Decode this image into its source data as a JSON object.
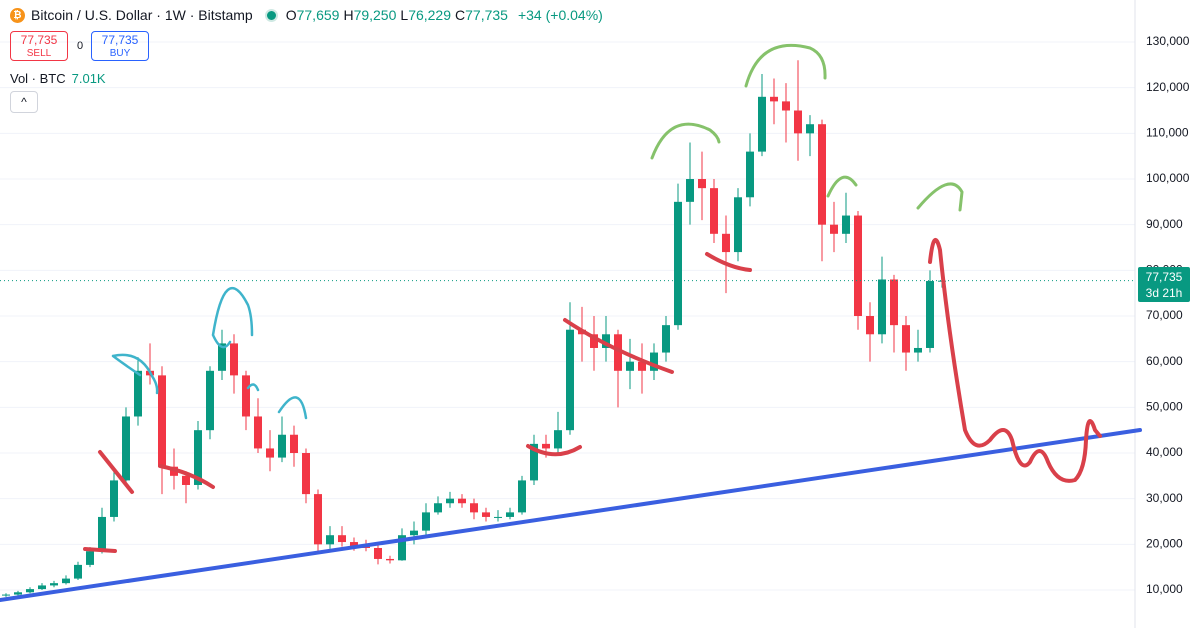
{
  "chart_data": {
    "type": "candlestick",
    "title": "Bitcoin / U.S. Dollar · 1W · Bitstamp",
    "ohlc": [
      {
        "label": "O",
        "value": "77,659"
      },
      {
        "label": "H",
        "value": "79,250"
      },
      {
        "label": "L",
        "value": "76,229"
      },
      {
        "label": "C",
        "value": "77,735"
      }
    ],
    "change": "+34 (+0.04%)",
    "sell": {
      "price": "77,735",
      "label": "SELL"
    },
    "spread": "0",
    "buy": {
      "price": "77,735",
      "label": "BUY"
    },
    "volume": {
      "label": "Vol · BTC",
      "value": "7.01K"
    },
    "last_price": {
      "label": "77,735",
      "countdown": "3d 21h"
    },
    "up_color": "#089981",
    "down_color": "#f23645",
    "ylim": [
      1680,
      139200
    ],
    "yticks": [
      {
        "value": 10000,
        "label": "10,000"
      },
      {
        "value": 20000,
        "label": "20,000"
      },
      {
        "value": 30000,
        "label": "30,000"
      },
      {
        "value": 40000,
        "label": "40,000"
      },
      {
        "value": 50000,
        "label": "50,000"
      },
      {
        "value": 60000,
        "label": "60,000"
      },
      {
        "value": 70000,
        "label": "70,000"
      },
      {
        "value": 80000,
        "label": "80,000"
      },
      {
        "value": 90000,
        "label": "90,000"
      },
      {
        "value": 100000,
        "label": "100,000"
      },
      {
        "value": 110000,
        "label": "110,000"
      },
      {
        "value": 120000,
        "label": "120,000"
      },
      {
        "value": 130000,
        "label": "130,000"
      }
    ],
    "candles": [
      [
        8800,
        9300,
        8500,
        9000
      ],
      [
        9000,
        9800,
        8800,
        9500
      ],
      [
        9500,
        10600,
        9300,
        10200
      ],
      [
        10200,
        11500,
        10000,
        11000
      ],
      [
        11000,
        12000,
        10600,
        11500
      ],
      [
        11500,
        13200,
        11200,
        12500
      ],
      [
        12500,
        16200,
        12200,
        15500
      ],
      [
        15500,
        19400,
        15000,
        18500
      ],
      [
        18500,
        28000,
        18000,
        26000
      ],
      [
        26000,
        36000,
        25000,
        34000
      ],
      [
        34000,
        50000,
        33000,
        48000
      ],
      [
        48000,
        61000,
        46000,
        58000
      ],
      [
        58000,
        64000,
        55000,
        57000
      ],
      [
        57000,
        59000,
        31000,
        37000
      ],
      [
        37000,
        41000,
        32000,
        35000
      ],
      [
        35000,
        36000,
        29000,
        33000
      ],
      [
        33000,
        47000,
        32000,
        45000
      ],
      [
        45000,
        59000,
        43000,
        58000
      ],
      [
        58000,
        67000,
        56000,
        64000
      ],
      [
        64000,
        66000,
        53000,
        57000
      ],
      [
        57000,
        58000,
        45000,
        48000
      ],
      [
        48000,
        52000,
        40000,
        41000
      ],
      [
        41000,
        45000,
        36000,
        39000
      ],
      [
        39000,
        48000,
        38000,
        44000
      ],
      [
        44000,
        46000,
        37000,
        40000
      ],
      [
        40000,
        41000,
        29000,
        31000
      ],
      [
        31000,
        32000,
        17800,
        20000
      ],
      [
        20000,
        24000,
        19000,
        22000
      ],
      [
        22000,
        24000,
        19500,
        20500
      ],
      [
        20500,
        21500,
        18600,
        19500
      ],
      [
        19500,
        21000,
        18500,
        19200
      ],
      [
        19200,
        19800,
        15600,
        16800
      ],
      [
        16800,
        17500,
        15800,
        16500
      ],
      [
        16500,
        23500,
        16400,
        22000
      ],
      [
        22000,
        25000,
        20000,
        23000
      ],
      [
        23000,
        29000,
        22000,
        27000
      ],
      [
        27000,
        30500,
        26500,
        29000
      ],
      [
        29000,
        31500,
        28000,
        30000
      ],
      [
        30000,
        31000,
        28000,
        29000
      ],
      [
        29000,
        30000,
        25500,
        27000
      ],
      [
        27000,
        28000,
        25000,
        26000
      ],
      [
        26000,
        27500,
        25000,
        26000
      ],
      [
        26000,
        28000,
        25500,
        27000
      ],
      [
        27000,
        35000,
        26500,
        34000
      ],
      [
        34000,
        44000,
        33000,
        42000
      ],
      [
        42000,
        44000,
        39000,
        41000
      ],
      [
        41000,
        49000,
        40000,
        45000
      ],
      [
        45000,
        73000,
        44000,
        67000
      ],
      [
        67000,
        72000,
        60000,
        66000
      ],
      [
        66000,
        70000,
        58000,
        63000
      ],
      [
        63000,
        70000,
        60000,
        66000
      ],
      [
        66000,
        67000,
        50000,
        58000
      ],
      [
        58000,
        65000,
        54000,
        60000
      ],
      [
        60000,
        64000,
        53000,
        58000
      ],
      [
        58000,
        64000,
        56000,
        62000
      ],
      [
        62000,
        70000,
        60000,
        68000
      ],
      [
        68000,
        99000,
        67000,
        95000
      ],
      [
        95000,
        108000,
        90000,
        100000
      ],
      [
        100000,
        106000,
        91000,
        98000
      ],
      [
        98000,
        100000,
        86000,
        88000
      ],
      [
        88000,
        92000,
        75000,
        84000
      ],
      [
        84000,
        98000,
        82000,
        96000
      ],
      [
        96000,
        110000,
        94000,
        106000
      ],
      [
        106000,
        123000,
        105000,
        118000
      ],
      [
        118000,
        122000,
        112000,
        117000
      ],
      [
        117000,
        121000,
        108000,
        115000
      ],
      [
        115000,
        126000,
        104000,
        110000
      ],
      [
        110000,
        114000,
        105000,
        112000
      ],
      [
        112000,
        113000,
        82000,
        90000
      ],
      [
        90000,
        95000,
        84000,
        88000
      ],
      [
        88000,
        97000,
        86000,
        92000
      ],
      [
        92000,
        93000,
        67000,
        70000
      ],
      [
        70000,
        73000,
        60000,
        66000
      ],
      [
        66000,
        83000,
        64000,
        78000
      ],
      [
        78000,
        79000,
        62000,
        68000
      ],
      [
        68000,
        70000,
        58000,
        62000
      ],
      [
        62000,
        67000,
        60000,
        63000
      ],
      [
        63000,
        80000,
        62000,
        77659
      ],
      [
        77659,
        79250,
        76229,
        77735
      ]
    ]
  }
}
